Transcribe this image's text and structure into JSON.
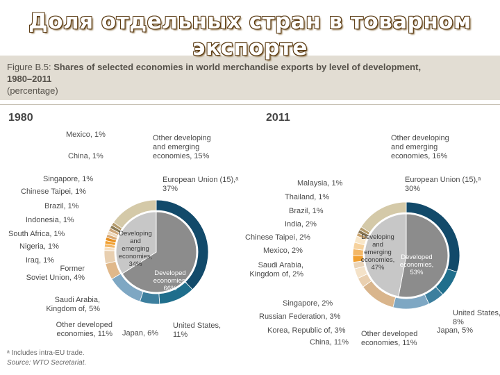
{
  "slide_title": "Доля отдельных стран в товарном экспорте",
  "figure": {
    "label": "Figure B.5:",
    "title": "Shares of selected economies in world merchandise exports by level of development,",
    "period": "1980–2011",
    "unit": "(percentage)"
  },
  "colors": {
    "eu": "#124a6a",
    "us": "#1f6e8c",
    "japan": "#3d7f9e",
    "other_developed": "#7ea7c3",
    "developed_inner": "#8c8c8c",
    "developing_inner": "#c7c7c7",
    "other_developing": "#d4c9a8",
    "orange": "#f1a030",
    "tan": "#d9b58c"
  },
  "chart_data": [
    {
      "type": "pie",
      "title": "1980",
      "outer_ring": [
        {
          "label": "European Union (15),ᵃ 37%",
          "value": 37
        },
        {
          "label": "United States, 11%",
          "value": 11
        },
        {
          "label": "Japan, 6%",
          "value": 6
        },
        {
          "label": "Other developed economies, 11%",
          "value": 11
        },
        {
          "label": "Saudi Arabia, Kingdom of, 5%",
          "value": 5
        },
        {
          "label": "Former Soviet Union, 4%",
          "value": 4
        },
        {
          "label": "Iraq, 1%",
          "value": 1
        },
        {
          "label": "Nigeria, 1%",
          "value": 1
        },
        {
          "label": "South Africa, 1%",
          "value": 1
        },
        {
          "label": "Indonesia, 1%",
          "value": 1
        },
        {
          "label": "Brazil, 1%",
          "value": 1
        },
        {
          "label": "Chinese Taipei, 1%",
          "value": 1
        },
        {
          "label": "Singapore, 1%",
          "value": 1
        },
        {
          "label": "China, 1%",
          "value": 1
        },
        {
          "label": "Mexico, 1%",
          "value": 1
        },
        {
          "label": "Other developing and emerging economies, 15%",
          "value": 15
        }
      ],
      "inner_ring": [
        {
          "label": "Developed economies, 66%",
          "value": 66
        },
        {
          "label": "Developing and emerging economies, 34%",
          "value": 34
        }
      ]
    },
    {
      "type": "pie",
      "title": "2011",
      "outer_ring": [
        {
          "label": "European Union (15),ᵃ 30%",
          "value": 30
        },
        {
          "label": "United States, 8%",
          "value": 8
        },
        {
          "label": "Japan, 5%",
          "value": 5
        },
        {
          "label": "Other developed economies, 11%",
          "value": 11
        },
        {
          "label": "China, 11%",
          "value": 11
        },
        {
          "label": "Korea, Republic of, 3%",
          "value": 3
        },
        {
          "label": "Russian Federation, 3%",
          "value": 3
        },
        {
          "label": "Singapore, 2%",
          "value": 2
        },
        {
          "label": "Saudi Arabia, Kingdom of, 2%",
          "value": 2
        },
        {
          "label": "Mexico, 2%",
          "value": 2
        },
        {
          "label": "Chinese Taipei, 2%",
          "value": 2
        },
        {
          "label": "India, 2%",
          "value": 2
        },
        {
          "label": "Brazil, 1%",
          "value": 1
        },
        {
          "label": "Thailand, 1%",
          "value": 1
        },
        {
          "label": "Malaysia, 1%",
          "value": 1
        },
        {
          "label": "Other developing and emerging economies, 16%",
          "value": 16
        }
      ],
      "inner_ring": [
        {
          "label": "Developed economies, 53%",
          "value": 53
        },
        {
          "label": "Developing and emerging economies, 47%",
          "value": 47
        }
      ]
    }
  ],
  "labels_1980": {
    "mexico": "Mexico, 1%",
    "china": "China, 1%",
    "singapore": "Singapore, 1%",
    "chinese_taipei": "Chinese Taipei, 1%",
    "brazil": "Brazil, 1%",
    "indonesia": "Indonesia, 1%",
    "south_africa": "South Africa, 1%",
    "nigeria": "Nigeria, 1%",
    "iraq": "Iraq, 1%",
    "fsu_1": "Former",
    "fsu_2": "Soviet Union, 4%",
    "saudi_1": "Saudi Arabia,",
    "saudi_2": "Kingdom of, 5%",
    "other_dev_1": "Other developed",
    "other_dev_2": "economies, 11%",
    "japan": "Japan, 6%",
    "us_1": "United States,",
    "us_2": "11%",
    "eu_1": "European Union (15),ᵃ",
    "eu_2": "37%",
    "other_dvg_1": "Other developing",
    "other_dvg_2": "and emerging",
    "other_dvg_3": "economies, 15%",
    "inner_dvg_1": "Developing",
    "inner_dvg_2": "and",
    "inner_dvg_3": "emerging",
    "inner_dvg_4": "economies,",
    "inner_dvg_5": "34%",
    "inner_dev_1": "Developed",
    "inner_dev_2": "economies,",
    "inner_dev_3": "66%"
  },
  "labels_2011": {
    "malaysia": "Malaysia, 1%",
    "thailand": "Thailand, 1%",
    "brazil": "Brazil, 1%",
    "india": "India, 2%",
    "chinese_taipei": "Chinese Taipei, 2%",
    "mexico": "Mexico, 2%",
    "saudi_1": "Saudi Arabia,",
    "saudi_2": "Kingdom of, 2%",
    "singapore": "Singapore, 2%",
    "russia": "Russian Federation, 3%",
    "korea": "Korea, Republic of, 3%",
    "china": "China, 11%",
    "other_dev_1": "Other developed",
    "other_dev_2": "economies, 11%",
    "japan": "Japan, 5%",
    "us_1": "United States,",
    "us_2": "8%",
    "eu_1": "European Union (15),ᵃ",
    "eu_2": "30%",
    "other_dvg_1": "Other developing",
    "other_dvg_2": "and emerging",
    "other_dvg_3": "economies, 16%",
    "inner_dvg_1": "Developing",
    "inner_dvg_2": "and",
    "inner_dvg_3": "emerging",
    "inner_dvg_4": "economies,",
    "inner_dvg_5": "47%",
    "inner_dev_1": "Developed",
    "inner_dev_2": "economies,",
    "inner_dev_3": "53%"
  },
  "footnotes": {
    "note": "ᵃ Includes intra-EU trade.",
    "source": "Source: WTO Secretariat."
  }
}
